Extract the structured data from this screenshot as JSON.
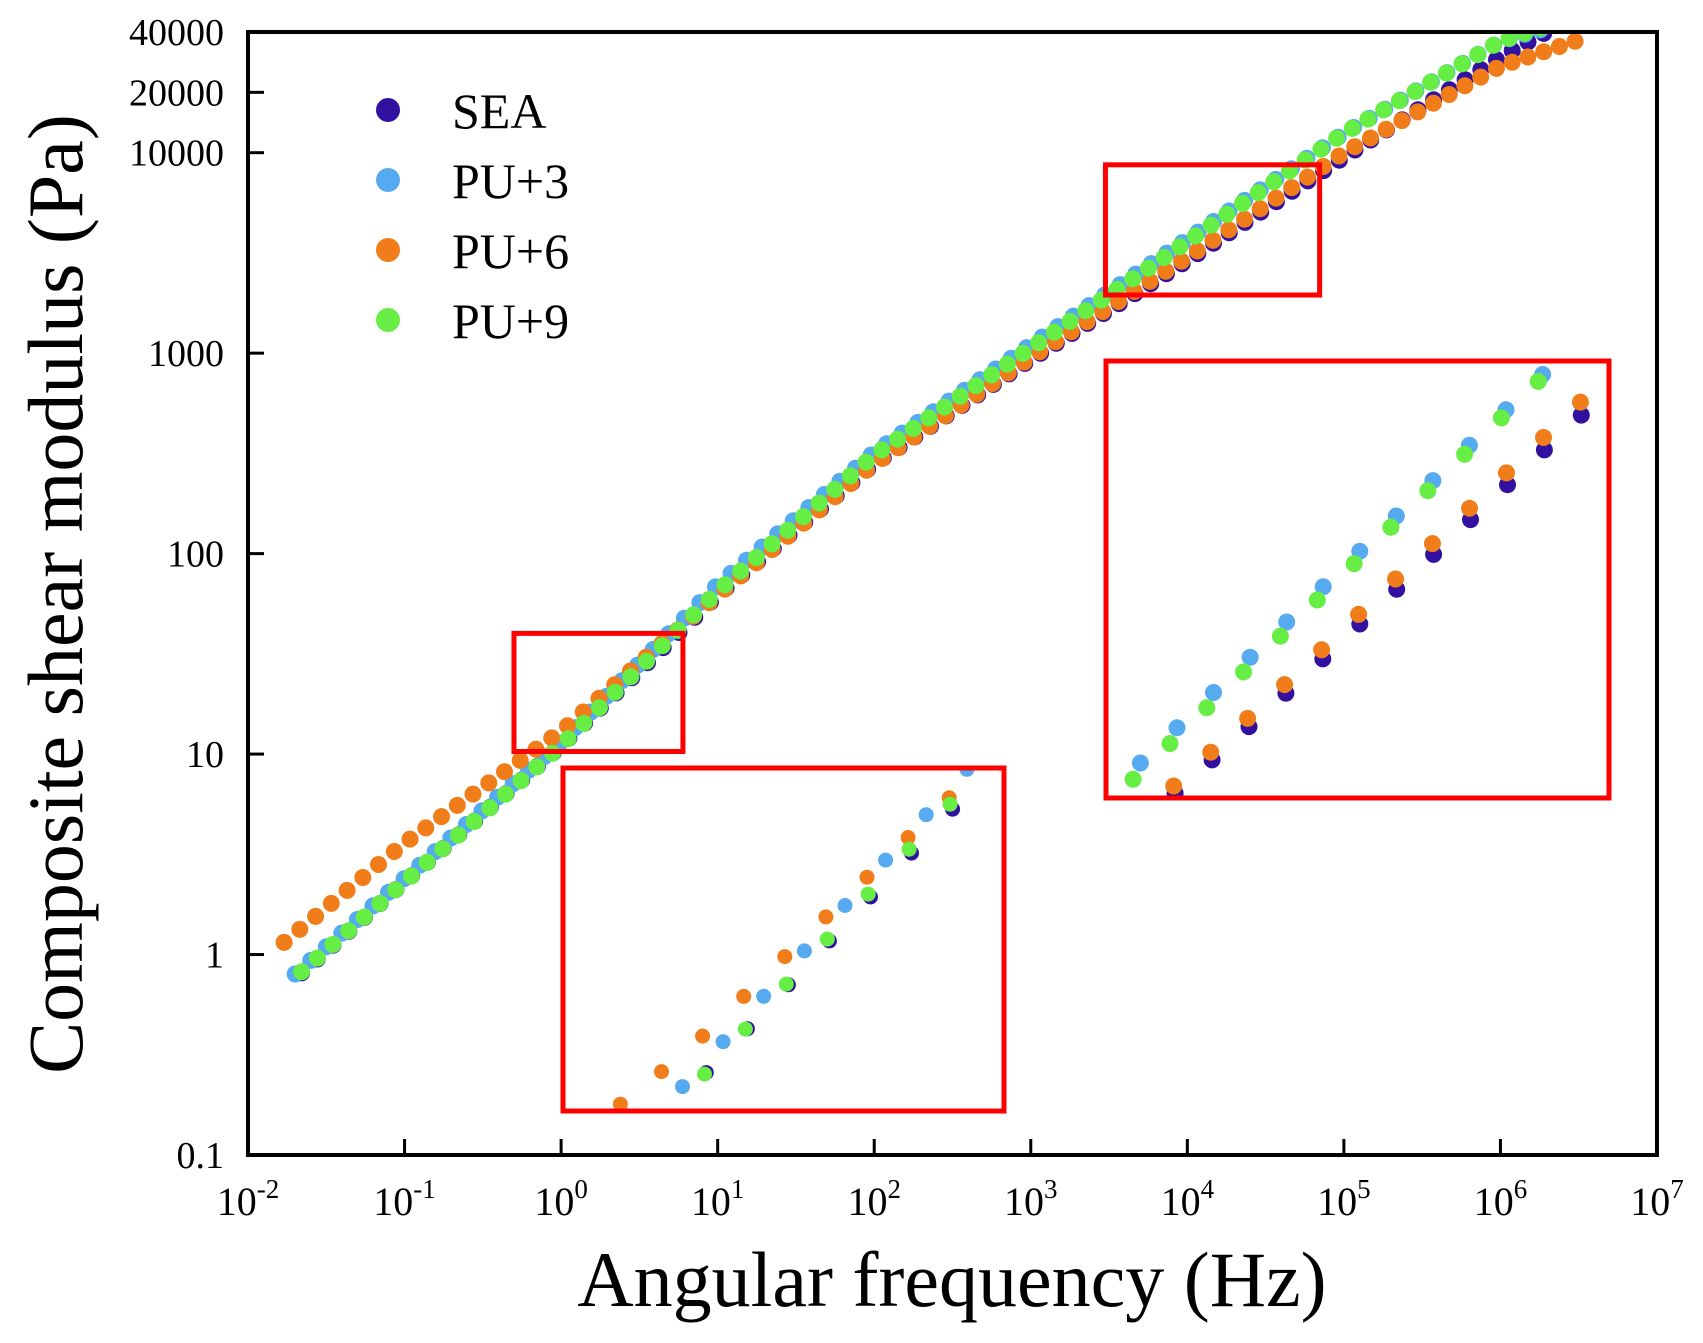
{
  "chart_data": {
    "type": "scatter",
    "title": "",
    "xlabel": "Angular frequency (Hz)",
    "ylabel": "Composite shear modulus (Pa)",
    "xscale": "log",
    "yscale": "log",
    "xlim": [
      0.01,
      10000000
    ],
    "ylim": [
      0.1,
      40000
    ],
    "x_ticks": [
      {
        "value": 0.01,
        "base": "10",
        "exp": "-2"
      },
      {
        "value": 0.1,
        "base": "10",
        "exp": "-1"
      },
      {
        "value": 1,
        "base": "10",
        "exp": "0"
      },
      {
        "value": 10,
        "base": "10",
        "exp": "1"
      },
      {
        "value": 100,
        "base": "10",
        "exp": "2"
      },
      {
        "value": 1000,
        "base": "10",
        "exp": "3"
      },
      {
        "value": 10000,
        "base": "10",
        "exp": "4"
      },
      {
        "value": 100000,
        "base": "10",
        "exp": "5"
      },
      {
        "value": 1000000,
        "base": "10",
        "exp": "6"
      },
      {
        "value": 10000000,
        "base": "10",
        "exp": "7"
      }
    ],
    "y_ticks": [
      {
        "value": 0.1,
        "label": "0.1"
      },
      {
        "value": 1,
        "label": "1"
      },
      {
        "value": 10,
        "label": "10"
      },
      {
        "value": 100,
        "label": "100"
      },
      {
        "value": 1000,
        "label": "1000"
      },
      {
        "value": 10000,
        "label": "10000"
      },
      {
        "value": 20000,
        "label": "20000"
      },
      {
        "value": 40000,
        "label": "40000"
      }
    ],
    "legend_position": "top-left",
    "series": [
      {
        "name": "SEA",
        "color": "#3311a0",
        "x_range": [
          0.022,
          3000000
        ],
        "anchors": [
          [
            0.022,
            0.81
          ],
          [
            0.1,
            2.3
          ],
          [
            1,
            11.0
          ],
          [
            10,
            62
          ],
          [
            100,
            280
          ],
          [
            1000,
            930
          ],
          [
            10000,
            2900
          ],
          [
            100000,
            9500
          ],
          [
            1000000,
            30000
          ],
          [
            3000000,
            48000
          ]
        ]
      },
      {
        "name": "PU+3",
        "color": "#55aaf0",
        "x_range": [
          0.02,
          1800000
        ],
        "anchors": [
          [
            0.02,
            0.8
          ],
          [
            0.1,
            2.4
          ],
          [
            1,
            11.5
          ],
          [
            10,
            70
          ],
          [
            100,
            320
          ],
          [
            1000,
            1100
          ],
          [
            10000,
            3700
          ],
          [
            100000,
            12500
          ],
          [
            1000000,
            36000
          ],
          [
            1800000,
            41000
          ]
        ]
      },
      {
        "name": "PU+6",
        "color": "#f07d1a",
        "x_range": [
          0.017,
          3000000
        ],
        "anchors": [
          [
            0.017,
            1.15
          ],
          [
            0.1,
            3.6
          ],
          [
            1,
            13.0
          ],
          [
            10,
            62
          ],
          [
            100,
            280
          ],
          [
            1000,
            950
          ],
          [
            10000,
            3000
          ],
          [
            100000,
            10000
          ],
          [
            1000000,
            27000
          ],
          [
            3000000,
            36000
          ]
        ]
      },
      {
        "name": "PU+9",
        "color": "#66ee44",
        "x_range": [
          0.022,
          1800000
        ],
        "anchors": [
          [
            0.022,
            0.82
          ],
          [
            0.1,
            2.3
          ],
          [
            1,
            11.0
          ],
          [
            10,
            65
          ],
          [
            100,
            310
          ],
          [
            1000,
            1060
          ],
          [
            10000,
            3600
          ],
          [
            100000,
            12500
          ],
          [
            1000000,
            36000
          ],
          [
            1800000,
            42000
          ]
        ]
      }
    ],
    "annotations": [
      {
        "type": "zoom-box",
        "x_range": [
          0.5,
          6
        ],
        "y_range": [
          10.3,
          40
        ]
      },
      {
        "type": "zoom-box",
        "x_range": [
          3000,
          70000
        ],
        "y_range": [
          1950,
          8700
        ]
      },
      {
        "type": "inset",
        "shows": "zoom-box 1",
        "placement": "lower-middle"
      },
      {
        "type": "inset",
        "shows": "zoom-box 2",
        "placement": "right-middle"
      }
    ],
    "box_color": "#ff0000"
  }
}
